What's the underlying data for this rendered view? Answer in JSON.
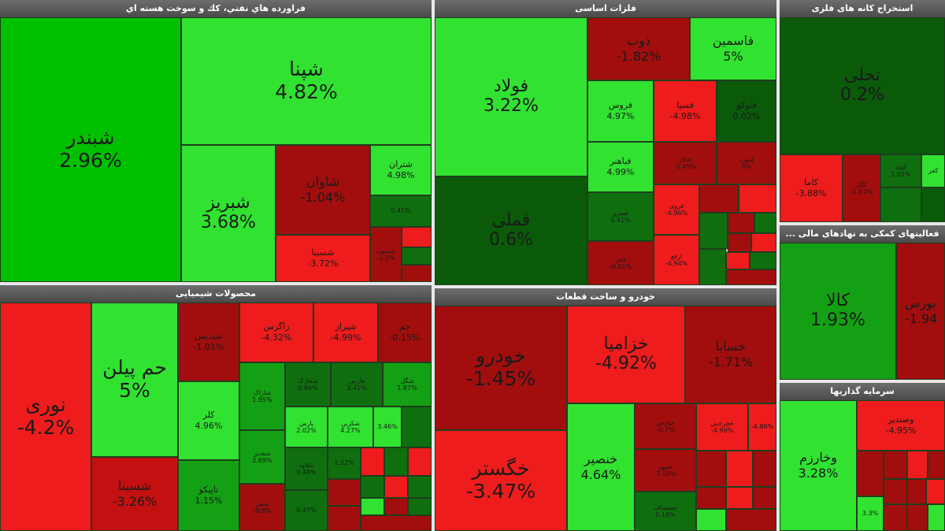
{
  "sectors": {
    "oil": {
      "title": "فراورده هاي نفتي، كك و سوخت هسته اي",
      "cells": {
        "shebandar": {
          "name": "شبندر",
          "pct": "2.96%"
        },
        "shepna": {
          "name": "شپنا",
          "pct": "4.82%"
        },
        "shebriz": {
          "name": "شبریز",
          "pct": "3.68%"
        },
        "shavan": {
          "name": "شاوان",
          "pct": "-1.04%"
        },
        "shesina": {
          "name": "شسینا",
          "pct": "-3.72%"
        },
        "shetran": {
          "name": "شتران",
          "pct": "4.98%"
        },
        "c7": {
          "name": "",
          "pct": "0.41%"
        },
        "c8": {
          "name": "شیمون",
          "pct": "-2.2%"
        }
      }
    },
    "metals": {
      "title": "فلزات اساسی",
      "cells": {
        "foolad": {
          "name": "فولاد",
          "pct": "3.22%"
        },
        "femeli": {
          "name": "فملی",
          "pct": "0.6%"
        },
        "zob": {
          "name": "ذوب",
          "pct": "-1.82%"
        },
        "fasmin": {
          "name": "فاسمین",
          "pct": "5%"
        },
        "foros": {
          "name": "فروس",
          "pct": "4.97%"
        },
        "fesepa": {
          "name": "فسپا",
          "pct": "-4.98%"
        },
        "fenedco": {
          "name": "فنوکو",
          "pct": "0.02%"
        },
        "faaahtar": {
          "name": "فباهنر",
          "pct": "4.99%"
        },
        "fekhaz": {
          "name": "فخاز",
          "pct": "-1.45%"
        },
        "fenvard": {
          "name": "فنورد",
          "pct": "0%"
        },
        "fesrvaz": {
          "name": "فسرو",
          "pct": "0.41%"
        },
        "feroz": {
          "name": "فروی",
          "pct": "-4.96%"
        },
        "fejar": {
          "name": "فجر",
          "pct": "-0.01%"
        },
        "arfa": {
          "name": "ارفع",
          "pct": "-4.94%"
        }
      }
    },
    "mining": {
      "title": "استخراج کانه های فلزی",
      "cells": {
        "tachli": {
          "name": "تحلی",
          "pct": "0.2%"
        },
        "kama": {
          "name": "کاما",
          "pct": "-3.88%"
        },
        "kegol": {
          "name": "کگل",
          "pct": "-1.67%"
        },
        "kechad": {
          "name": "کچاد",
          "pct": "1.01%"
        },
        "kafar": {
          "name": "کفر",
          "pct": ""
        },
        "c6": {
          "name": "",
          "pct": ""
        }
      }
    },
    "financial": {
      "title": "فعالیتهای کمکی به نهادهای مالی ...",
      "cells": {
        "kala": {
          "name": "کالا",
          "pct": "1.93%"
        },
        "bourse": {
          "name": "بورس",
          "pct": "-1.94"
        }
      }
    },
    "investment": {
      "title": "سرمایه گذاریها",
      "cells": {
        "vakharazm": {
          "name": "وخارزم",
          "pct": "3.28%"
        },
        "vasnadir": {
          "name": "وصندیر",
          "pct": "-4.95%"
        },
        "c3": {
          "name": "",
          "pct": "3.3%"
        }
      }
    },
    "chemical": {
      "title": "محصولات شیمیایی",
      "cells": {
        "noori": {
          "name": "نوری",
          "pct": "-4.2%"
        },
        "hampelen": {
          "name": "حم پیلن",
          "pct": "5%"
        },
        "shesina": {
          "name": "شسینا",
          "pct": "-3.26%"
        },
        "kala": {
          "name": "کلر",
          "pct": "4.96%"
        },
        "tapiko": {
          "name": "تاپیکو",
          "pct": "1.15%"
        },
        "shepadis": {
          "name": "شپدیس",
          "pct": "-1.01%"
        },
        "zagros": {
          "name": "زاگرس",
          "pct": "-4.32%"
        },
        "shiraz": {
          "name": "شیراز",
          "pct": "-4.99%"
        },
        "jam": {
          "name": "جم",
          "pct": "-0.15%"
        },
        "sharak": {
          "name": "شاراک",
          "pct": "1.95%"
        },
        "shekhark": {
          "name": "شخارک",
          "pct": "0.86%"
        },
        "fars": {
          "name": "فارس",
          "pct": "3.41%"
        },
        "shegol": {
          "name": "شگل",
          "pct": "1.87%"
        },
        "shetzeed": {
          "name": "شغدیر",
          "pct": "2.69%"
        },
        "pars": {
          "name": "پارس",
          "pct": "2.02%"
        },
        "shekrbon": {
          "name": "شکربن",
          "pct": "4.27%"
        },
        "c18": {
          "name": "",
          "pct": "3.46%"
        },
        "shelaved": {
          "name": "شلاود",
          "pct": "0.48%"
        },
        "shefen": {
          "name": "شفن",
          "pct": "-0.8%"
        },
        "c21": {
          "name": "",
          "pct": "0.47%"
        },
        "c22": {
          "name": "",
          "pct": "1.22%"
        }
      }
    },
    "auto": {
      "title": "خودرو و ساخت قطعات",
      "cells": {
        "khodro": {
          "name": "خودرو",
          "pct": "-1.45%"
        },
        "khegstar": {
          "name": "خگستر",
          "pct": "-3.47%"
        },
        "khazamia": {
          "name": "خزامیا",
          "pct": "-4.92%"
        },
        "khesaba": {
          "name": "خسابا",
          "pct": "-1.71%"
        },
        "khenser": {
          "name": "خنصیر",
          "pct": "4.64%"
        },
        "khapars": {
          "name": "خپارس",
          "pct": "-0.7%"
        },
        "khecharkh": {
          "name": "خچرخش",
          "pct": "-4.99%"
        },
        "c8": {
          "name": "",
          "pct": "-4.86%"
        },
        "khemehr": {
          "name": "خمهر",
          "pct": "-1.58%"
        },
        "khoshaksh": {
          "name": "خشصاف",
          "pct": "0.16%"
        }
      }
    }
  }
}
